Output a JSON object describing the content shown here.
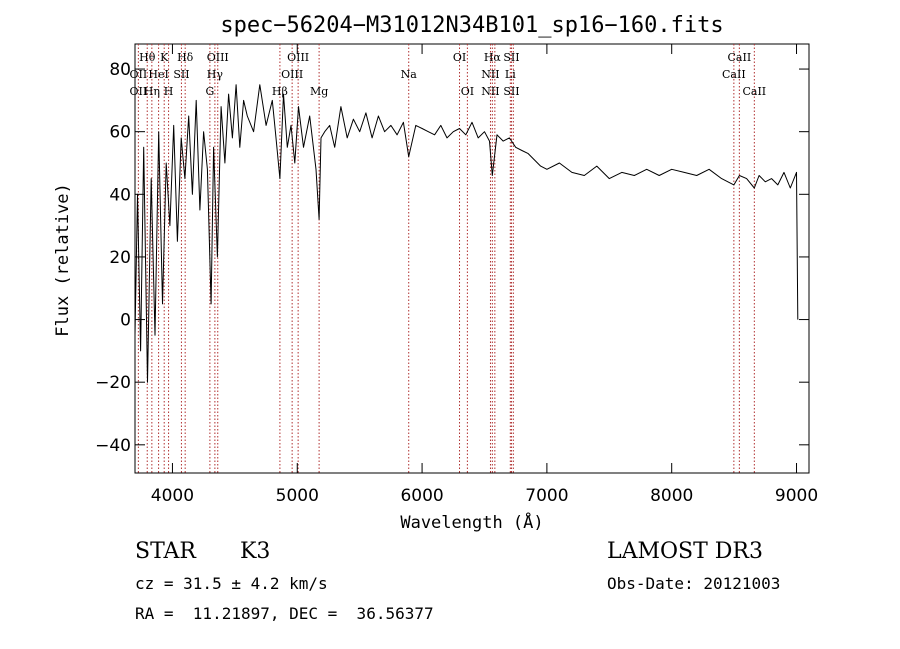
{
  "chart_data": {
    "type": "line",
    "title": "spec−56204−M31012N34B101_sp16−160.fits",
    "xlabel": "Wavelength (Å)",
    "ylabel": "Flux (relative)",
    "xlim": [
      3700,
      9100
    ],
    "ylim": [
      -49,
      88
    ],
    "x_ticks": [
      4000,
      5000,
      6000,
      7000,
      8000,
      9000
    ],
    "y_ticks": [
      -40,
      -20,
      0,
      20,
      40,
      60,
      80
    ],
    "y_tick_labels": [
      "−40",
      "−20",
      "0",
      "20",
      "40",
      "60",
      "80"
    ],
    "series": [
      {
        "name": "spectrum",
        "x": [
          3700,
          3720,
          3745,
          3770,
          3800,
          3830,
          3860,
          3890,
          3920,
          3950,
          3980,
          4010,
          4040,
          4070,
          4100,
          4130,
          4160,
          4190,
          4220,
          4250,
          4280,
          4310,
          4330,
          4360,
          4390,
          4420,
          4450,
          4480,
          4510,
          4540,
          4570,
          4600,
          4650,
          4700,
          4750,
          4800,
          4830,
          4861,
          4890,
          4920,
          4950,
          4980,
          5010,
          5050,
          5100,
          5150,
          5175,
          5190,
          5220,
          5260,
          5300,
          5350,
          5400,
          5450,
          5500,
          5550,
          5600,
          5650,
          5700,
          5750,
          5800,
          5850,
          5893,
          5950,
          6000,
          6050,
          6100,
          6150,
          6200,
          6250,
          6300,
          6350,
          6400,
          6450,
          6500,
          6540,
          6563,
          6600,
          6650,
          6700,
          6750,
          6800,
          6850,
          6900,
          6950,
          7000,
          7100,
          7200,
          7300,
          7400,
          7500,
          7600,
          7700,
          7800,
          7900,
          8000,
          8100,
          8200,
          8300,
          8400,
          8498,
          8542,
          8600,
          8662,
          8700,
          8750,
          8800,
          8850,
          8900,
          8950,
          9000,
          9010
        ],
        "y": [
          -5,
          40,
          -10,
          55,
          -20,
          45,
          -5,
          60,
          5,
          50,
          30,
          62,
          25,
          58,
          45,
          65,
          40,
          70,
          35,
          60,
          48,
          5,
          55,
          20,
          68,
          50,
          72,
          58,
          75,
          55,
          70,
          65,
          60,
          75,
          62,
          70,
          58,
          45,
          72,
          55,
          62,
          50,
          68,
          55,
          65,
          48,
          32,
          58,
          60,
          62,
          55,
          68,
          58,
          64,
          60,
          66,
          58,
          65,
          60,
          62,
          59,
          63,
          52,
          62,
          61,
          60,
          59,
          62,
          58,
          60,
          61,
          59,
          63,
          58,
          60,
          57,
          46,
          59,
          57,
          58,
          55,
          54,
          53,
          51,
          49,
          48,
          50,
          47,
          46,
          49,
          45,
          47,
          46,
          48,
          46,
          48,
          47,
          46,
          48,
          45,
          43,
          46,
          45,
          42,
          46,
          44,
          45,
          43,
          47,
          42,
          47,
          0
        ]
      }
    ],
    "lines": [
      {
        "wl": 3727,
        "top": "",
        "mid": "OII",
        "low": "OII"
      },
      {
        "wl": 3798,
        "top": "Hθ",
        "mid": "",
        "low": ""
      },
      {
        "wl": 3835,
        "top": "",
        "mid": "",
        "low": "Hη"
      },
      {
        "wl": 3889,
        "top": "",
        "mid": "HeI",
        "low": ""
      },
      {
        "wl": 3934,
        "top": "K",
        "mid": "",
        "low": ""
      },
      {
        "wl": 3969,
        "top": "",
        "mid": "",
        "low": "H"
      },
      {
        "wl": 4072,
        "top": "",
        "mid": "SII",
        "low": ""
      },
      {
        "wl": 4102,
        "top": "Hδ",
        "mid": "",
        "low": ""
      },
      {
        "wl": 4300,
        "top": "",
        "mid": "",
        "low": "G"
      },
      {
        "wl": 4340,
        "top": "",
        "mid": "Hγ",
        "low": ""
      },
      {
        "wl": 4363,
        "top": "OIII",
        "mid": "",
        "low": ""
      },
      {
        "wl": 4861,
        "top": "",
        "mid": "",
        "low": "Hβ"
      },
      {
        "wl": 4959,
        "top": "",
        "mid": "OIII",
        "low": ""
      },
      {
        "wl": 5007,
        "top": "OIII",
        "mid": "",
        "low": ""
      },
      {
        "wl": 5175,
        "top": "",
        "mid": "",
        "low": "Mg"
      },
      {
        "wl": 5893,
        "top": "",
        "mid": "Na",
        "low": ""
      },
      {
        "wl": 6300,
        "top": "OI",
        "mid": "",
        "low": ""
      },
      {
        "wl": 6363,
        "top": "",
        "mid": "",
        "low": "OI"
      },
      {
        "wl": 6548,
        "top": "",
        "mid": "NII",
        "low": "NII"
      },
      {
        "wl": 6563,
        "top": "Hα",
        "mid": "",
        "low": ""
      },
      {
        "wl": 6583,
        "top": "",
        "mid": "",
        "low": ""
      },
      {
        "wl": 6707,
        "top": "",
        "mid": "Li",
        "low": ""
      },
      {
        "wl": 6716,
        "top": "SII",
        "mid": "",
        "low": "SII"
      },
      {
        "wl": 6731,
        "top": "",
        "mid": "",
        "low": ""
      },
      {
        "wl": 8498,
        "top": "",
        "mid": "CaII",
        "low": ""
      },
      {
        "wl": 8542,
        "top": "CaII",
        "mid": "",
        "low": ""
      },
      {
        "wl": 8662,
        "top": "",
        "mid": "",
        "low": "CaII"
      }
    ]
  },
  "info": {
    "class": "STAR",
    "subclass": "K3",
    "cz": "cz = 31.5 ± 4.2 km/s",
    "coords": "RA =  11.21897, DEC =  36.56377",
    "survey": "LAMOST DR3",
    "obs_date": "Obs-Date: 20121003"
  },
  "colors": {
    "axis": "#000000",
    "spectrum": "#000000",
    "line_marker": "#b03030"
  }
}
